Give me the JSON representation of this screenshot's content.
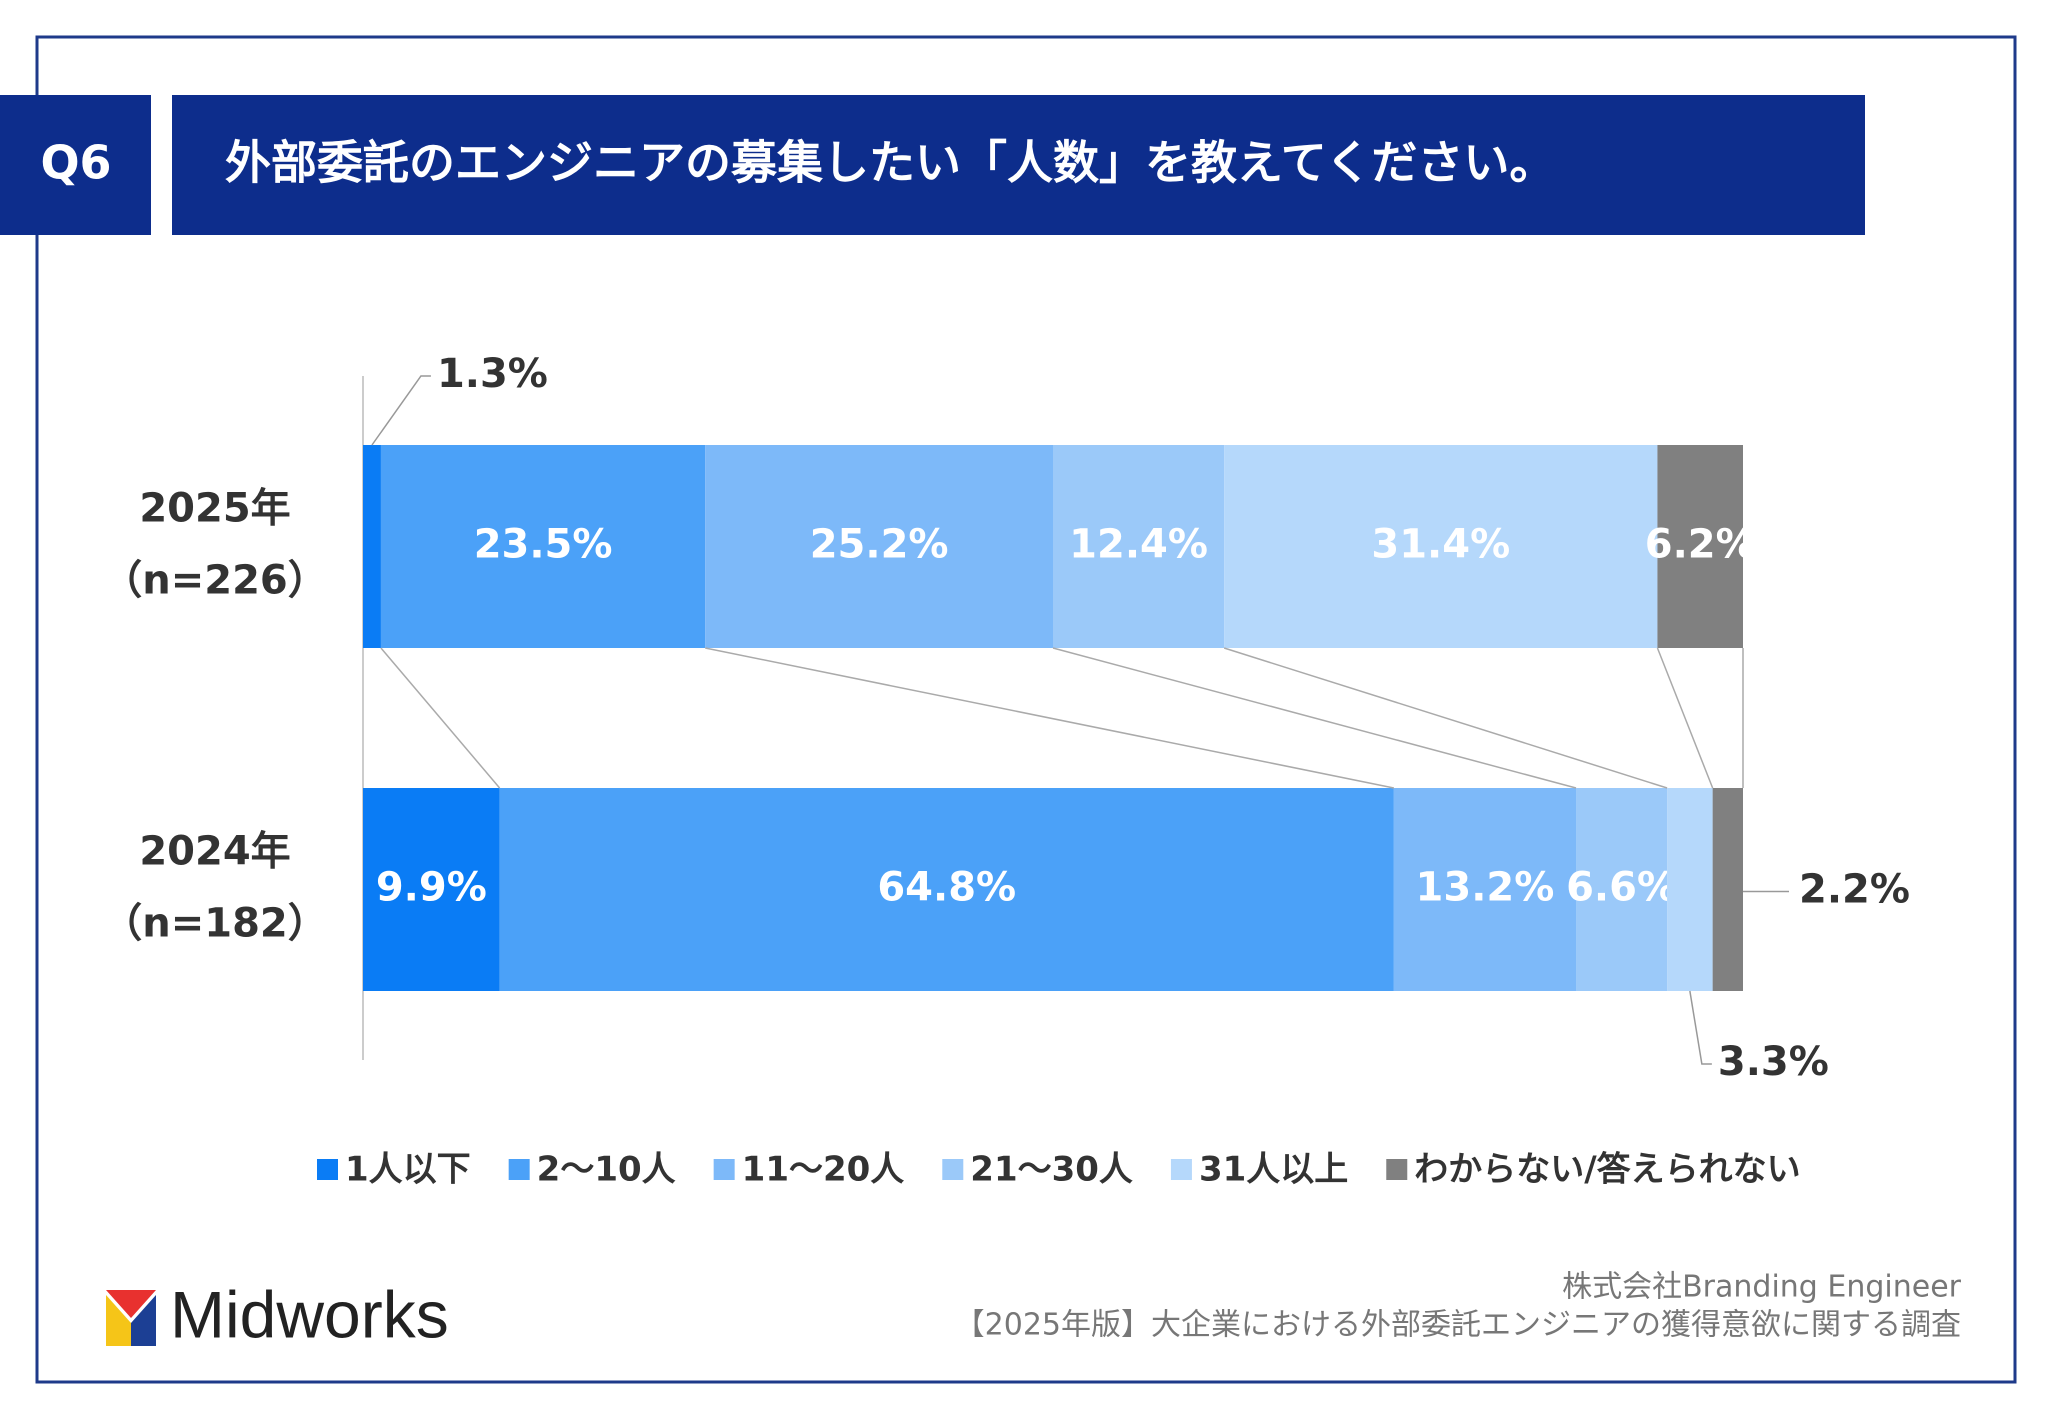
{
  "header": {
    "badge": "Q6",
    "title": "外部委託のエンジニアの募集したい「人数」を教えてください。"
  },
  "chart_data": {
    "type": "bar",
    "orientation": "horizontal",
    "stacked": true,
    "categories": [
      "2025年",
      "2024年"
    ],
    "category_notes": [
      "（n=226）",
      "（n=182）"
    ],
    "xlim": [
      0,
      100
    ],
    "series": [
      {
        "name": "1人以下",
        "color": "#0a7cf5",
        "values": [
          1.3,
          9.9
        ],
        "value_labels": [
          "1.3%",
          "9.9%"
        ]
      },
      {
        "name": "2〜10人",
        "color": "#4ba1f8",
        "values": [
          23.5,
          64.8
        ],
        "value_labels": [
          "23.5%",
          "64.8%"
        ]
      },
      {
        "name": "11〜20人",
        "color": "#7db9f9",
        "values": [
          25.2,
          13.2
        ],
        "value_labels": [
          "25.2%",
          "13.2%"
        ]
      },
      {
        "name": "21〜30人",
        "color": "#9bc9f9",
        "values": [
          12.4,
          6.6
        ],
        "value_labels": [
          "12.4%",
          "6.6%"
        ]
      },
      {
        "name": "31人以上",
        "color": "#b5d8fb",
        "values": [
          31.4,
          3.3
        ],
        "value_labels": [
          "31.4%",
          "3.3%"
        ]
      },
      {
        "name": "わからない/答えられない",
        "color": "#808080",
        "values": [
          6.2,
          2.2
        ],
        "value_labels": [
          "6.2%",
          "2.2%"
        ]
      }
    ]
  },
  "footer": {
    "logo": "Midworks",
    "source": [
      "株式会社Branding Engineer",
      "【2025年版】大企業における外部委託エンジニアの獲得意欲に関する調査"
    ]
  }
}
